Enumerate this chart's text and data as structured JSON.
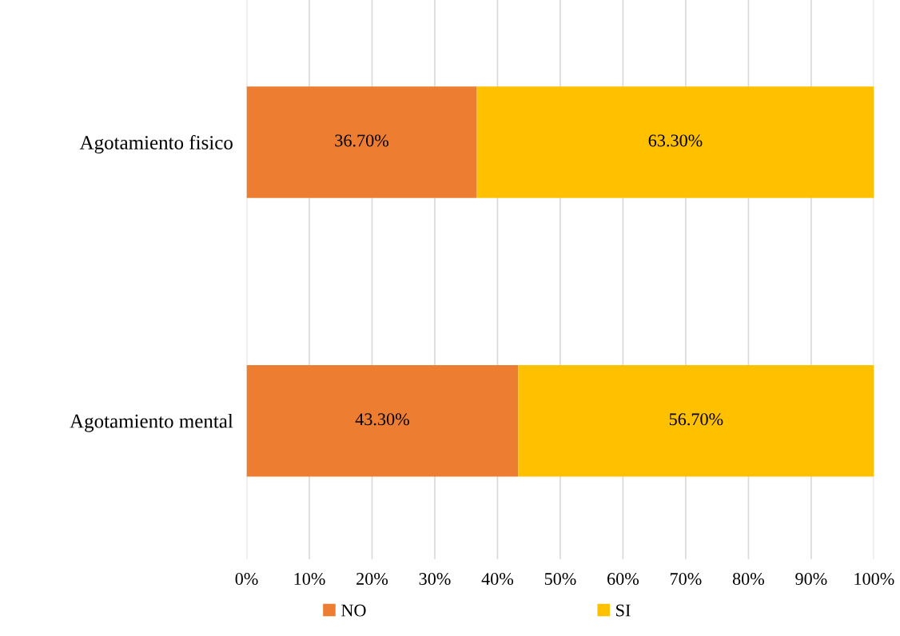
{
  "chart_data": {
    "type": "bar",
    "orientation": "horizontal",
    "stacked": true,
    "categories": [
      "Agotamiento fisico",
      "Agotamiento mental"
    ],
    "series": [
      {
        "name": "NO",
        "color": "#ed7d31",
        "values": [
          36.7,
          43.3
        ],
        "value_labels": [
          "36.70%",
          "43.30%"
        ]
      },
      {
        "name": "SI",
        "color": "#ffc000",
        "values": [
          63.3,
          56.7
        ],
        "value_labels": [
          "63.30%",
          "56.70%"
        ]
      }
    ],
    "xlim": [
      0,
      100
    ],
    "xticks": [
      {
        "value": 0,
        "label": "0%"
      },
      {
        "value": 10,
        "label": "10%"
      },
      {
        "value": 20,
        "label": "20%"
      },
      {
        "value": 30,
        "label": "30%"
      },
      {
        "value": 40,
        "label": "40%"
      },
      {
        "value": 50,
        "label": "50%"
      },
      {
        "value": 60,
        "label": "60%"
      },
      {
        "value": 70,
        "label": "70%"
      },
      {
        "value": 80,
        "label": "80%"
      },
      {
        "value": 90,
        "label": "90%"
      },
      {
        "value": 100,
        "label": "100%"
      }
    ],
    "grid": "x",
    "legend": "bottom"
  }
}
